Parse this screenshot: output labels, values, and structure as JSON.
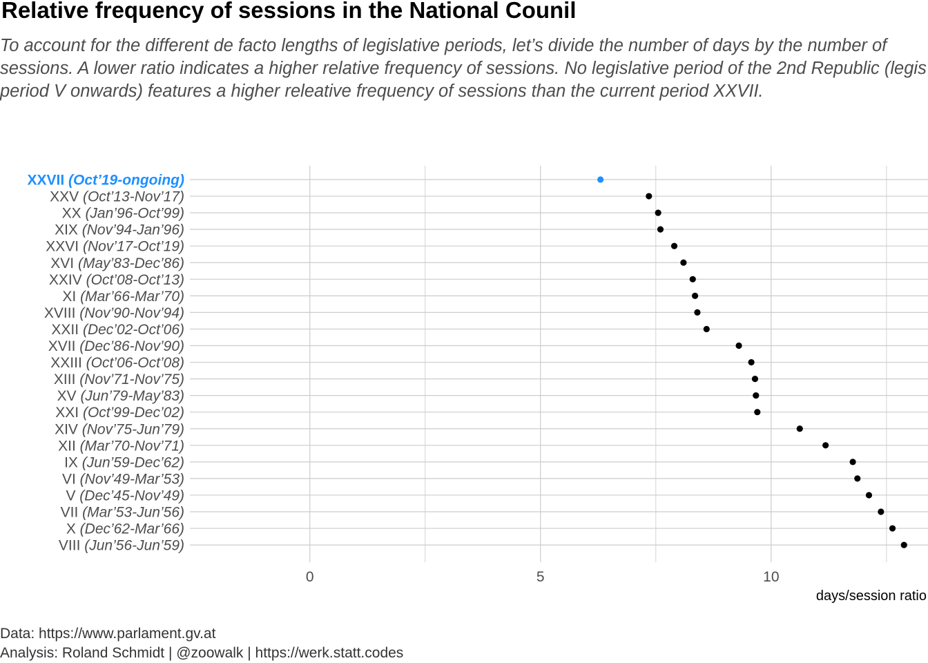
{
  "chart_data": {
    "type": "scatter",
    "title": "Relative frequency of sessions in the National Counil",
    "subtitle": "To account for the different de facto lengths of legislative periods, let’s divide the number of days by the number of sessions. A lower ratio indicates a higher relative frequency of sessions. No legislative period of the 2nd Republic (legis period V onwards) features a higher releative frequency of sessions than the current period XXVII.",
    "xlabel": "days/session ratio",
    "ylabel": "",
    "xlim": [
      -2.6,
      13.4
    ],
    "xticks": [
      0,
      5,
      10
    ],
    "grid": true,
    "highlight_color": "#1E90FF",
    "point_color": "#000000",
    "categories": [
      {
        "period": "XXVII",
        "dates": "(Oct’19-ongoing)",
        "value": 6.3,
        "highlight": true
      },
      {
        "period": "XXV",
        "dates": "(Oct’13-Nov’17)",
        "value": 7.35
      },
      {
        "period": "XX",
        "dates": "(Jan’96-Oct’99)",
        "value": 7.55
      },
      {
        "period": "XIX",
        "dates": "(Nov’94-Jan’96)",
        "value": 7.6
      },
      {
        "period": "XXVI",
        "dates": "(Nov’17-Oct’19)",
        "value": 7.9
      },
      {
        "period": "XVI",
        "dates": "(May’83-Dec’86)",
        "value": 8.1
      },
      {
        "period": "XXIV",
        "dates": "(Oct’08-Oct’13)",
        "value": 8.3
      },
      {
        "period": "XI",
        "dates": "(Mar’66-Mar’70)",
        "value": 8.35
      },
      {
        "period": "XVIII",
        "dates": "(Nov’90-Nov’94)",
        "value": 8.4
      },
      {
        "period": "XXII",
        "dates": "(Dec’02-Oct’06)",
        "value": 8.6
      },
      {
        "period": "XVII",
        "dates": "(Dec’86-Nov’90)",
        "value": 9.3
      },
      {
        "period": "XXIII",
        "dates": "(Oct’06-Oct’08)",
        "value": 9.57
      },
      {
        "period": "XIII",
        "dates": "(Nov’71-Nov’75)",
        "value": 9.65
      },
      {
        "period": "XV",
        "dates": "(Jun’79-May’83)",
        "value": 9.67
      },
      {
        "period": "XXI",
        "dates": "(Oct’99-Dec’02)",
        "value": 9.7
      },
      {
        "period": "XIV",
        "dates": "(Nov’75-Jun’79)",
        "value": 10.62
      },
      {
        "period": "XII",
        "dates": "(Mar’70-Nov’71)",
        "value": 11.18
      },
      {
        "period": "IX",
        "dates": "(Jun’59-Dec’62)",
        "value": 11.77
      },
      {
        "period": "VI",
        "dates": "(Nov’49-Mar’53)",
        "value": 11.87
      },
      {
        "period": "V",
        "dates": "(Dec’45-Nov’49)",
        "value": 12.12
      },
      {
        "period": "VII",
        "dates": "(Mar’53-Jun’56)",
        "value": 12.38
      },
      {
        "period": "X",
        "dates": "(Dec’62-Mar’66)",
        "value": 12.63
      },
      {
        "period": "VIII",
        "dates": "(Jun’56-Jun’59)",
        "value": 12.88
      }
    ]
  },
  "caption": {
    "data_line": "Data: https://www.parlament.gv.at",
    "analysis_line": "Analysis: Roland Schmidt | @zoowalk | https://werk.statt.codes"
  }
}
